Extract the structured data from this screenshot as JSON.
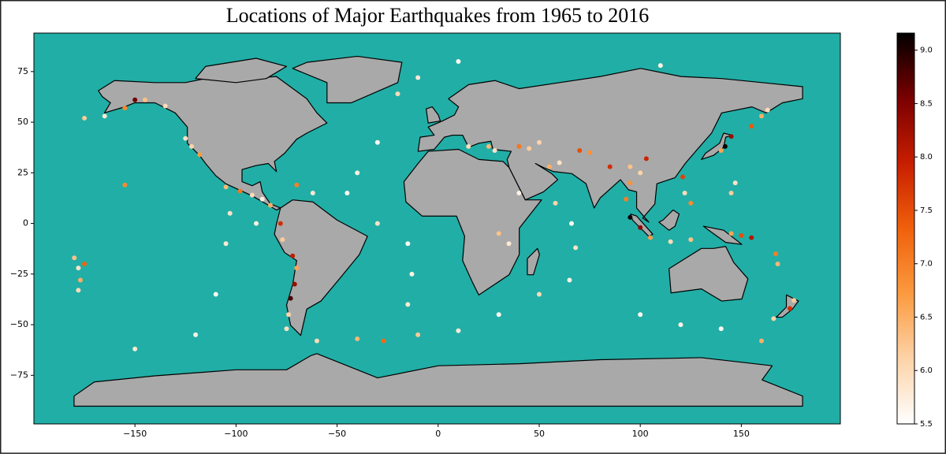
{
  "chart_data": {
    "type": "scatter",
    "title": "Locations of Major Earthquakes from 1965 to 2016",
    "x": [
      -175,
      -165,
      -155,
      -150,
      -135,
      -145,
      -125,
      -122,
      -118,
      -105,
      -98,
      -92,
      -87,
      -83,
      -70,
      -62,
      -78,
      -77,
      -72,
      -70,
      -71,
      -73,
      -74,
      -75,
      -60,
      -40,
      -27,
      -30,
      -40,
      -45,
      -30,
      -15,
      -13,
      -15,
      -10,
      10,
      30,
      50,
      65,
      68,
      66,
      58,
      40,
      30,
      35,
      15,
      25,
      28,
      40,
      45,
      55,
      60,
      75,
      85,
      95,
      100,
      103,
      95,
      100,
      105,
      115,
      125,
      125,
      122,
      121,
      140,
      142,
      145,
      155,
      160,
      163,
      145,
      147,
      145,
      150,
      155,
      167,
      168,
      -175,
      -177,
      -178,
      176,
      174,
      166,
      160,
      100,
      120,
      140,
      -150,
      -120,
      -110,
      -105,
      -103,
      -90,
      -155,
      -20,
      -10,
      10,
      110,
      50,
      70,
      95,
      93,
      -180,
      -178
    ],
    "y": [
      52,
      53,
      57,
      61,
      58,
      61,
      42,
      38,
      34,
      18,
      16,
      14,
      12,
      9,
      19,
      15,
      0,
      -8,
      -16,
      -22,
      -30,
      -37,
      -45,
      -52,
      -58,
      -57,
      -58,
      40,
      25,
      15,
      0,
      -10,
      -25,
      -40,
      -55,
      -53,
      -45,
      -35,
      -28,
      -12,
      0,
      10,
      15,
      -5,
      -10,
      38,
      38,
      36,
      38,
      37,
      28,
      30,
      35,
      28,
      28,
      25,
      32,
      3,
      -2,
      -7,
      -9,
      -8,
      10,
      15,
      23,
      36,
      38,
      43,
      48,
      53,
      56,
      15,
      20,
      -5,
      -6,
      -7,
      -15,
      -20,
      -20,
      -28,
      -33,
      -38,
      -42,
      -47,
      -58,
      -45,
      -50,
      -52,
      -62,
      -55,
      -35,
      -10,
      5,
      0,
      19,
      64,
      72,
      80,
      78,
      40,
      36,
      20,
      12,
      -17,
      -22
    ],
    "magnitude": [
      6.2,
      5.8,
      6.9,
      8.6,
      6.0,
      6.3,
      5.9,
      6.1,
      6.7,
      6.4,
      7.1,
      6.0,
      5.7,
      6.5,
      7.0,
      5.8,
      7.8,
      6.2,
      8.0,
      6.6,
      8.3,
      8.8,
      6.1,
      5.9,
      6.0,
      6.4,
      7.2,
      5.6,
      5.7,
      5.6,
      5.9,
      5.6,
      5.7,
      5.8,
      6.2,
      5.8,
      5.6,
      6.0,
      5.7,
      5.9,
      5.6,
      6.1,
      5.7,
      6.3,
      5.8,
      6.0,
      6.4,
      5.9,
      7.1,
      6.2,
      6.5,
      5.9,
      6.8,
      7.8,
      6.3,
      6.1,
      7.9,
      9.1,
      8.4,
      6.7,
      6.0,
      6.3,
      6.9,
      6.0,
      7.6,
      6.6,
      9.1,
      8.3,
      7.4,
      6.5,
      6.0,
      6.2,
      5.9,
      6.6,
      7.5,
      8.1,
      7.0,
      6.4,
      7.3,
      6.5,
      6.0,
      6.2,
      7.8,
      6.1,
      6.5,
      5.6,
      5.7,
      5.6,
      5.8,
      5.7,
      5.6,
      5.8,
      5.9,
      5.7,
      6.9,
      6.0,
      5.8,
      5.6,
      5.7,
      6.1,
      7.5,
      6.8,
      7.0,
      6.3,
      5.9
    ],
    "xlim": [
      -200,
      199
    ],
    "ylim": [
      -99,
      94
    ],
    "xticks": [
      {
        "value": -150,
        "label": "−150"
      },
      {
        "value": -100,
        "label": "−100"
      },
      {
        "value": -50,
        "label": "−50"
      },
      0,
      50,
      100,
      150
    ],
    "yticks": [
      {
        "value": -75,
        "label": "−75"
      },
      {
        "value": -50,
        "label": "−50"
      },
      {
        "value": -25,
        "label": "−25"
      },
      0,
      25,
      50,
      75
    ],
    "background": "#21aea6",
    "colorbar": {
      "clim": [
        5.5,
        9.16
      ],
      "ticks": [
        5.5,
        {
          "value": 6,
          "label": "6.0"
        },
        6.5,
        {
          "value": 7,
          "label": "7.0"
        },
        7.5,
        {
          "value": 8,
          "label": "8.0"
        },
        8.5,
        {
          "value": 9,
          "label": "9.0"
        }
      ],
      "colorscale": [
        "#ffffff",
        "#fdd3a8",
        "#fb9a3f",
        "#f0600c",
        "#c81e00",
        "#7a0000",
        "#000000"
      ]
    }
  }
}
